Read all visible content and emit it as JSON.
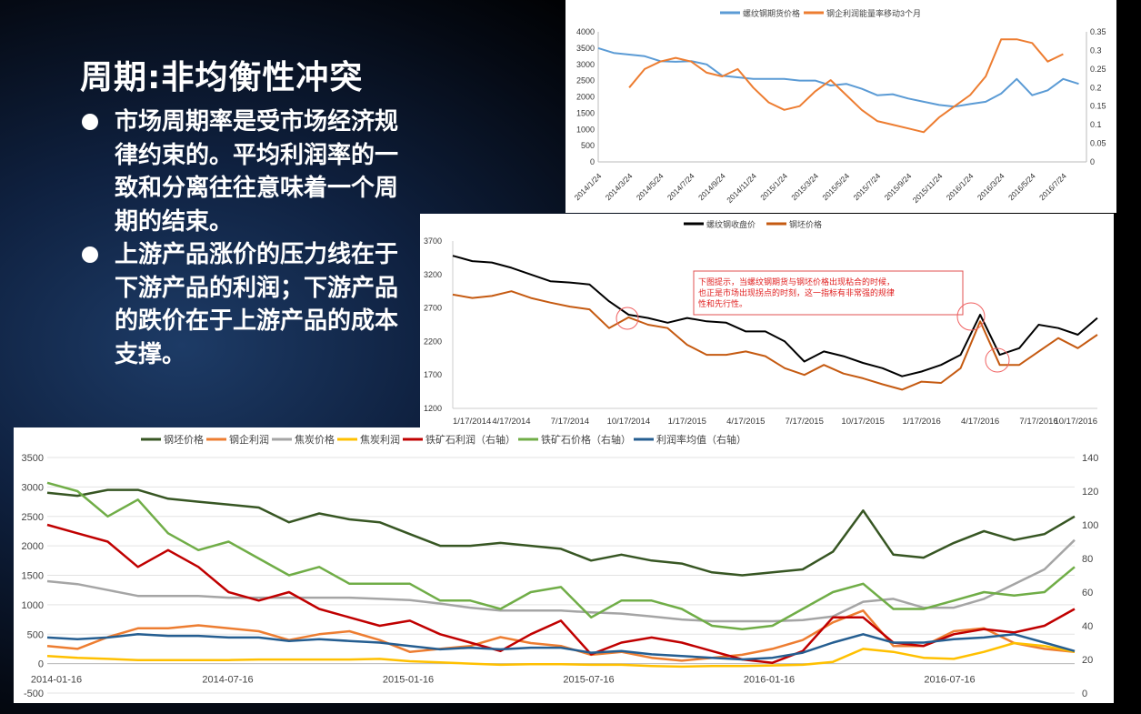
{
  "slide": {
    "title": "周期:非均衡性冲突",
    "bullets": [
      "市场周期率是受市场经济规律约束的。平均利润率的一致和分离往往意味着一个周期的结束。",
      "上游产品涨价的压力线在于下游产品的利润；下游产品的跌价在于上游产品的成本支撑。"
    ]
  },
  "chart_data": [
    {
      "type": "line",
      "title": "",
      "x_tick_labels": [
        "2014/1/24",
        "2014/3/24",
        "2014/5/24",
        "2014/7/24",
        "2014/9/24",
        "2014/11/24",
        "2015/1/24",
        "2015/3/24",
        "2015/5/24",
        "2015/7/24",
        "2015/9/24",
        "2015/11/24",
        "2016/1/24",
        "2016/3/24",
        "2016/5/24",
        "2016/7/24"
      ],
      "x": [
        "2014-01",
        "2014-02",
        "2014-03",
        "2014-04",
        "2014-05",
        "2014-06",
        "2014-07",
        "2014-08",
        "2014-09",
        "2014-10",
        "2014-11",
        "2014-12",
        "2015-01",
        "2015-02",
        "2015-03",
        "2015-04",
        "2015-05",
        "2015-06",
        "2015-07",
        "2015-08",
        "2015-09",
        "2015-10",
        "2015-11",
        "2015-12",
        "2016-01",
        "2016-02",
        "2016-03",
        "2016-04",
        "2016-05",
        "2016-06",
        "2016-07",
        "2016-08"
      ],
      "y_left": {
        "range": [
          0,
          4000
        ],
        "ticks": [
          "4000",
          "3500",
          "3000",
          "2500",
          "2000",
          "1500",
          "1000",
          "500",
          "0"
        ]
      },
      "y_right": {
        "range": [
          0,
          0.35
        ],
        "ticks": [
          "0.35",
          "0.3",
          "0.25",
          "0.2",
          "0.15",
          "0.1",
          "0.05",
          "0"
        ]
      },
      "legend_position": "top",
      "grid": false,
      "series": [
        {
          "name": "螺纹钢期货价格",
          "axis": "left",
          "color": "#5b9bd5",
          "values": [
            3500,
            3350,
            3300,
            3250,
            3100,
            3080,
            3100,
            3000,
            2650,
            2600,
            2550,
            2550,
            2550,
            2500,
            2500,
            2350,
            2400,
            2250,
            2050,
            2080,
            1950,
            1850,
            1750,
            1700,
            1780,
            1850,
            2100,
            2550,
            2050,
            2200,
            2550,
            2400
          ]
        },
        {
          "name": "钢企利润能量率移动3个月",
          "axis": "right",
          "color": "#ed7d31",
          "values": [
            null,
            null,
            0.2,
            0.25,
            0.27,
            0.28,
            0.27,
            0.24,
            0.23,
            0.25,
            0.2,
            0.16,
            0.14,
            0.15,
            0.19,
            0.22,
            0.18,
            0.14,
            0.11,
            0.1,
            0.09,
            0.08,
            0.12,
            0.15,
            0.18,
            0.23,
            0.33,
            0.33,
            0.32,
            0.27,
            0.29,
            null
          ]
        }
      ]
    },
    {
      "type": "line",
      "title": "",
      "x_tick_labels": [
        "1/17/2014",
        "4/17/2014",
        "7/17/2014",
        "10/17/2014",
        "1/17/2015",
        "4/17/2015",
        "7/17/2015",
        "10/17/2015",
        "1/17/2016",
        "4/17/2016",
        "7/17/2016",
        "10/17/2016"
      ],
      "y": {
        "range": [
          1200,
          3700
        ],
        "ticks": [
          "3700",
          "3200",
          "2700",
          "2200",
          "1700",
          "1200"
        ]
      },
      "legend_position": "top",
      "grid": false,
      "annotation": [
        "下图提示，当螺纹钢期货与钢坯价格出现粘合的时候，",
        "也正是市场出现拐点的时刻，这一指标有非常强的规律",
        "性和先行性。"
      ],
      "series": [
        {
          "name": "螺纹钢收盘价",
          "color": "#000000",
          "values": [
            3480,
            3400,
            3380,
            3300,
            3200,
            3100,
            3080,
            3050,
            2800,
            2600,
            2550,
            2480,
            2550,
            2500,
            2480,
            2350,
            2350,
            2200,
            1900,
            2050,
            1980,
            1880,
            1800,
            1680,
            1750,
            1850,
            2000,
            2600,
            2000,
            2100,
            2450,
            2400,
            2300,
            2550
          ]
        },
        {
          "name": "钢坯价格",
          "color": "#c55a11",
          "values": [
            2900,
            2850,
            2880,
            2950,
            2850,
            2780,
            2720,
            2680,
            2400,
            2560,
            2450,
            2400,
            2150,
            2000,
            2000,
            2050,
            1980,
            1800,
            1700,
            1850,
            1720,
            1650,
            1560,
            1480,
            1600,
            1580,
            1800,
            2500,
            1850,
            1850,
            2050,
            2250,
            2100,
            2300
          ]
        }
      ]
    },
    {
      "type": "line",
      "title": "",
      "x_tick_labels": [
        "2014-01-16",
        "2014-07-16",
        "2015-01-16",
        "2015-07-16",
        "2016-01-16",
        "2016-07-16"
      ],
      "y_left": {
        "range": [
          -500,
          3500
        ],
        "ticks": [
          "3500",
          "3000",
          "2500",
          "2000",
          "1500",
          "1000",
          "500",
          "0",
          "-500"
        ]
      },
      "y_right": {
        "range": [
          0,
          140
        ],
        "ticks": [
          "140",
          "120",
          "100",
          "80",
          "60",
          "40",
          "20",
          "0"
        ]
      },
      "legend_position": "top",
      "grid": true,
      "series": [
        {
          "name": "钢坯价格",
          "axis": "left",
          "color": "#375623",
          "values": [
            2900,
            2850,
            2950,
            2950,
            2800,
            2750,
            2700,
            2650,
            2400,
            2550,
            2450,
            2400,
            2200,
            2000,
            2000,
            2050,
            2000,
            1950,
            1750,
            1850,
            1750,
            1700,
            1550,
            1500,
            1550,
            1600,
            1900,
            2600,
            1850,
            1800,
            2050,
            2250,
            2100,
            2200,
            2500
          ]
        },
        {
          "name": "钢企利润",
          "axis": "left",
          "color": "#ed7d31",
          "values": [
            300,
            250,
            450,
            600,
            600,
            650,
            600,
            550,
            400,
            500,
            550,
            400,
            200,
            250,
            300,
            450,
            350,
            300,
            150,
            200,
            100,
            50,
            100,
            150,
            250,
            400,
            700,
            900,
            300,
            300,
            550,
            600,
            350,
            250,
            200
          ]
        },
        {
          "name": "焦炭价格",
          "axis": "left",
          "color": "#a5a5a5",
          "values": [
            1400,
            1350,
            1250,
            1150,
            1150,
            1150,
            1120,
            1120,
            1120,
            1120,
            1120,
            1100,
            1080,
            1020,
            950,
            900,
            900,
            900,
            870,
            850,
            800,
            750,
            720,
            720,
            720,
            740,
            800,
            1050,
            1100,
            950,
            950,
            1100,
            1350,
            1600,
            2100
          ]
        },
        {
          "name": "焦炭利润",
          "axis": "left",
          "color": "#ffc000",
          "values": [
            130,
            100,
            80,
            60,
            60,
            60,
            60,
            70,
            70,
            70,
            70,
            80,
            40,
            20,
            0,
            -20,
            -10,
            -10,
            -20,
            -20,
            -40,
            -50,
            -40,
            -40,
            -30,
            -20,
            30,
            250,
            200,
            100,
            80,
            200,
            350,
            300,
            200
          ]
        },
        {
          "name": "铁矿石利润（右轴）",
          "axis": "right",
          "color": "#c00000",
          "values": [
            100,
            95,
            90,
            75,
            85,
            75,
            60,
            55,
            60,
            50,
            45,
            40,
            43,
            35,
            30,
            25,
            35,
            43,
            23,
            30,
            33,
            30,
            25,
            20,
            18,
            25,
            45,
            45,
            30,
            28,
            35,
            38,
            36,
            40,
            50
          ]
        },
        {
          "name": "铁矿石价格（右轴）",
          "axis": "right",
          "color": "#70ad47",
          "values": [
            125,
            120,
            105,
            115,
            95,
            85,
            90,
            80,
            70,
            75,
            65,
            65,
            65,
            55,
            55,
            50,
            60,
            63,
            45,
            55,
            55,
            50,
            40,
            38,
            40,
            50,
            60,
            65,
            50,
            50,
            55,
            60,
            58,
            60,
            75
          ]
        },
        {
          "name": "利润率均值（右轴）",
          "axis": "right",
          "color": "#255e91",
          "values": [
            33,
            32,
            33,
            35,
            34,
            34,
            33,
            33,
            31,
            32,
            31,
            30,
            28,
            26,
            27,
            26,
            27,
            27,
            24,
            25,
            23,
            22,
            21,
            20,
            21,
            24,
            30,
            35,
            30,
            30,
            32,
            33,
            35,
            30,
            25
          ]
        }
      ]
    }
  ]
}
